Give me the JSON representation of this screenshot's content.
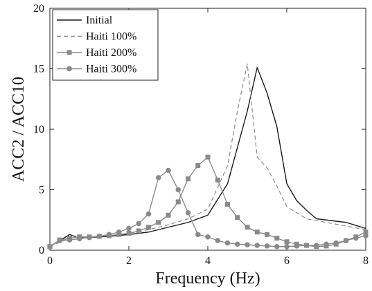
{
  "chart_data": {
    "type": "line",
    "title": "",
    "xlabel": "Frequency (Hz)",
    "ylabel": "ACC2 / ACC10",
    "xlim": [
      0,
      8
    ],
    "ylim": [
      0,
      20
    ],
    "xticks": [
      0,
      2,
      4,
      6,
      8
    ],
    "yticks": [
      0,
      5,
      10,
      15,
      20
    ],
    "grid": false,
    "legend_position": "top-left",
    "series": [
      {
        "name": "Initial",
        "style": "solid",
        "marker": "none",
        "color": "#1a1a1a",
        "x": [
          0,
          0.25,
          0.5,
          0.75,
          1.0,
          1.5,
          2.0,
          2.5,
          3.0,
          3.5,
          4.0,
          4.5,
          5.0,
          5.25,
          5.5,
          5.75,
          6.0,
          6.25,
          6.5,
          6.75,
          7.0,
          7.5,
          8.0
        ],
        "y": [
          0.3,
          0.8,
          1.3,
          1.0,
          1.05,
          1.15,
          1.3,
          1.5,
          1.9,
          2.3,
          2.9,
          5.5,
          11.5,
          15.1,
          13.0,
          10.2,
          5.5,
          4.1,
          3.3,
          2.6,
          2.5,
          2.3,
          1.8
        ]
      },
      {
        "name": "Haiti 100%",
        "style": "dashed",
        "marker": "none",
        "color": "#8a8a8a",
        "x": [
          0,
          0.5,
          1.0,
          1.5,
          2.0,
          2.5,
          3.0,
          3.5,
          4.0,
          4.5,
          4.75,
          5.0,
          5.25,
          5.5,
          5.75,
          6.0,
          6.5,
          7.0,
          7.5,
          8.0
        ],
        "y": [
          0.3,
          1.0,
          1.1,
          1.2,
          1.4,
          1.7,
          2.1,
          2.6,
          3.4,
          7.0,
          11.5,
          15.4,
          7.7,
          6.8,
          5.3,
          3.6,
          2.6,
          2.3,
          2.0,
          1.7
        ]
      },
      {
        "name": "Haiti 200%",
        "style": "solid",
        "marker": "square",
        "color": "#8a8a8a",
        "x": [
          0,
          0.25,
          0.5,
          0.75,
          1.0,
          1.25,
          1.5,
          1.75,
          2.0,
          2.25,
          2.5,
          2.75,
          3.0,
          3.25,
          3.5,
          3.75,
          4.0,
          4.25,
          4.5,
          4.75,
          5.0,
          5.25,
          5.5,
          5.75,
          6.0,
          6.25,
          6.5,
          6.75,
          7.0,
          7.25,
          7.5,
          7.75,
          8.0
        ],
        "y": [
          0.3,
          0.85,
          1.0,
          1.1,
          1.1,
          1.15,
          1.2,
          1.3,
          1.4,
          1.6,
          1.9,
          2.3,
          2.9,
          4.0,
          5.9,
          7.0,
          7.7,
          5.8,
          3.8,
          2.7,
          1.9,
          1.5,
          1.3,
          1.0,
          0.7,
          0.5,
          0.4,
          0.3,
          0.35,
          0.5,
          0.8,
          1.1,
          1.5
        ]
      },
      {
        "name": "Haiti 300%",
        "style": "solid",
        "marker": "circle",
        "color": "#8a8a8a",
        "x": [
          0,
          0.25,
          0.5,
          0.75,
          1.0,
          1.25,
          1.5,
          1.75,
          2.0,
          2.25,
          2.5,
          2.75,
          3.0,
          3.25,
          3.5,
          3.75,
          4.0,
          4.25,
          4.5,
          4.75,
          5.0,
          5.25,
          5.5,
          5.75,
          6.0,
          6.25,
          6.5,
          6.75,
          7.0,
          7.25,
          7.5,
          7.75,
          8.0
        ],
        "y": [
          0.3,
          0.8,
          0.85,
          0.95,
          1.05,
          1.15,
          1.3,
          1.5,
          1.8,
          2.2,
          3.0,
          6.0,
          6.6,
          5.0,
          3.1,
          1.3,
          1.1,
          0.8,
          0.6,
          0.5,
          0.45,
          0.4,
          0.35,
          0.3,
          0.3,
          0.35,
          0.4,
          0.4,
          0.5,
          0.6,
          0.8,
          1.0,
          1.2
        ]
      }
    ]
  }
}
